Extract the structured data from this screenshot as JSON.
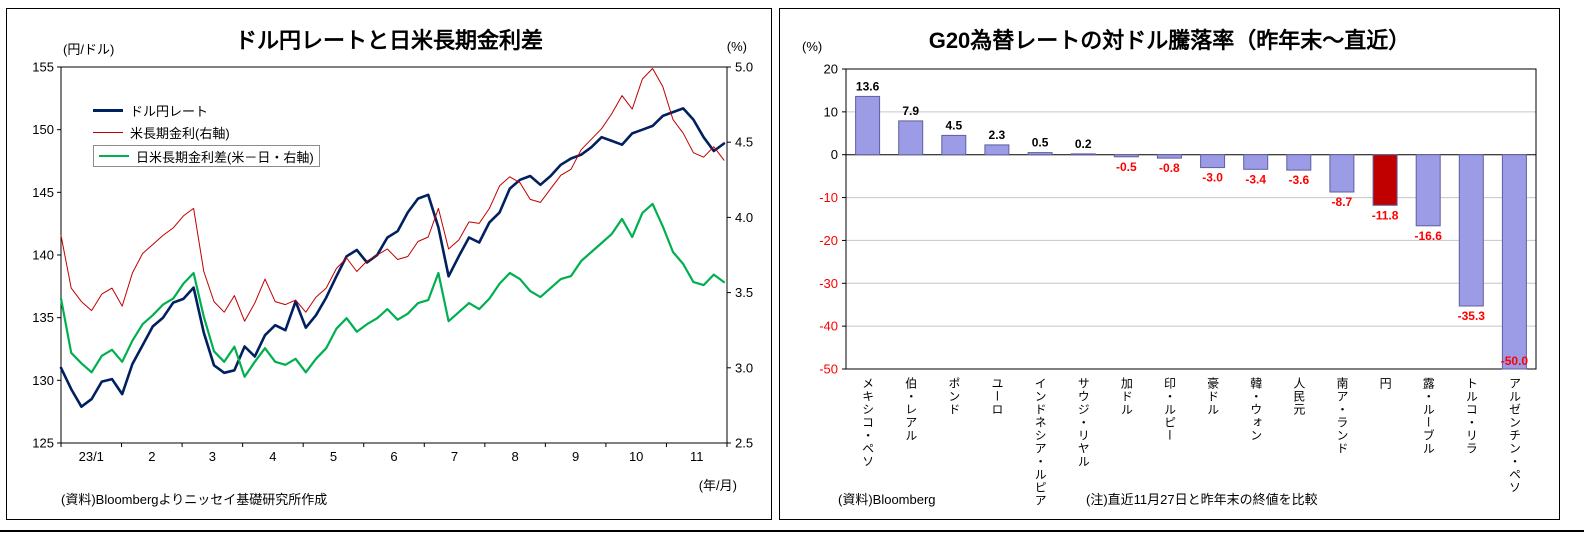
{
  "chart_data": [
    {
      "type": "line",
      "title": "ドル円レートと日米長期金利差",
      "y_left_unit": "(円/ドル)",
      "y_right_unit": "(%)",
      "x_unit": "(年/月)",
      "source": "(資料)Bloombergよりニッセイ基礎研究所作成",
      "x_ticks": [
        "23/1",
        "2",
        "3",
        "4",
        "5",
        "6",
        "7",
        "8",
        "9",
        "10",
        "11"
      ],
      "y_left": {
        "range": [
          125,
          155
        ],
        "ticks": [
          155,
          150,
          145,
          140,
          135,
          130,
          125
        ]
      },
      "y_right": {
        "range": [
          2.5,
          5.0
        ],
        "ticks": [
          5.0,
          4.5,
          4.0,
          3.5,
          3.0,
          2.5
        ]
      },
      "series": [
        {
          "name": "ドル円レート",
          "axis": "left",
          "color": "#002060",
          "width": 2.6,
          "values": [
            131.0,
            129.3,
            127.9,
            128.5,
            129.9,
            130.1,
            128.9,
            131.3,
            132.8,
            134.3,
            135.0,
            136.2,
            136.5,
            137.4,
            133.8,
            131.2,
            130.6,
            130.8,
            132.7,
            131.9,
            133.6,
            134.4,
            134.0,
            136.3,
            134.2,
            135.2,
            136.6,
            138.3,
            139.9,
            140.4,
            139.4,
            140.0,
            141.4,
            141.9,
            143.4,
            144.5,
            144.8,
            142.2,
            138.3,
            139.9,
            141.4,
            141.0,
            142.6,
            143.4,
            145.3,
            146.0,
            146.3,
            145.6,
            146.3,
            147.2,
            147.7,
            148.0,
            148.6,
            149.4,
            149.1,
            148.8,
            149.7,
            150.0,
            150.3,
            151.1,
            151.4,
            151.7,
            150.8,
            149.4,
            148.3,
            148.9
          ]
        },
        {
          "name": "米長期金利(右軸)",
          "axis": "right",
          "color": "#c00000",
          "width": 1,
          "values": [
            3.88,
            3.53,
            3.44,
            3.38,
            3.49,
            3.53,
            3.41,
            3.63,
            3.76,
            3.82,
            3.88,
            3.93,
            4.01,
            4.06,
            3.64,
            3.44,
            3.37,
            3.48,
            3.31,
            3.43,
            3.59,
            3.44,
            3.42,
            3.45,
            3.37,
            3.47,
            3.53,
            3.66,
            3.73,
            3.64,
            3.71,
            3.75,
            3.79,
            3.72,
            3.74,
            3.84,
            3.87,
            4.06,
            3.79,
            3.85,
            3.97,
            3.96,
            4.06,
            4.21,
            4.27,
            4.23,
            4.12,
            4.1,
            4.19,
            4.28,
            4.32,
            4.45,
            4.52,
            4.59,
            4.69,
            4.81,
            4.72,
            4.92,
            4.99,
            4.87,
            4.65,
            4.56,
            4.43,
            4.4,
            4.47,
            4.38
          ]
        },
        {
          "name": "日米長期金利差(米－日・右軸)",
          "axis": "right",
          "color": "#00b050",
          "width": 2.2,
          "values": [
            3.46,
            3.1,
            3.03,
            2.97,
            3.08,
            3.12,
            3.04,
            3.18,
            3.29,
            3.35,
            3.42,
            3.46,
            3.56,
            3.63,
            3.34,
            3.11,
            3.04,
            3.14,
            2.94,
            3.04,
            3.13,
            3.04,
            3.02,
            3.06,
            2.97,
            3.06,
            3.13,
            3.26,
            3.33,
            3.24,
            3.29,
            3.33,
            3.39,
            3.32,
            3.36,
            3.43,
            3.45,
            3.63,
            3.31,
            3.37,
            3.43,
            3.39,
            3.46,
            3.56,
            3.63,
            3.59,
            3.51,
            3.47,
            3.53,
            3.59,
            3.61,
            3.71,
            3.77,
            3.83,
            3.89,
            3.99,
            3.87,
            4.03,
            4.09,
            3.94,
            3.77,
            3.69,
            3.57,
            3.55,
            3.62,
            3.57
          ]
        }
      ]
    },
    {
      "type": "bar",
      "title": "G20為替レートの対ドル騰落率（昨年末～直近）",
      "ylabel": "(%)",
      "source": "(資料)Bloomberg",
      "note": "(注)直近11月27日と昨年末の終値を比較",
      "ylim": [
        -50,
        20
      ],
      "yticks": [
        20,
        10,
        0,
        -10,
        -20,
        -30,
        -40,
        -50
      ],
      "categories": [
        "メキシコ・ペソ",
        "伯・レアル",
        "ポンド",
        "ユーロ",
        "インドネシア・ルピア",
        "サウジ・リヤル",
        "加ドル",
        "印・ルピー",
        "豪ドル",
        "韓・ウォン",
        "人民元",
        "南ア・ランド",
        "円",
        "露・ルーブル",
        "トルコ・リラ",
        "アルゼンチン・ペソ"
      ],
      "values": [
        13.6,
        7.9,
        4.5,
        2.3,
        0.5,
        0.2,
        -0.5,
        -0.8,
        -3.0,
        -3.4,
        -3.6,
        -8.7,
        -11.8,
        -16.6,
        -35.3,
        -50.0
      ],
      "accent_index": 12,
      "colors": {
        "bar_default": "#9b9be6",
        "bar_border": "#5f5f9f",
        "bar_accent": "#c00000",
        "negative_text": "#ff0000",
        "grid": "#c6c6c6",
        "axis": "#000000"
      }
    }
  ]
}
